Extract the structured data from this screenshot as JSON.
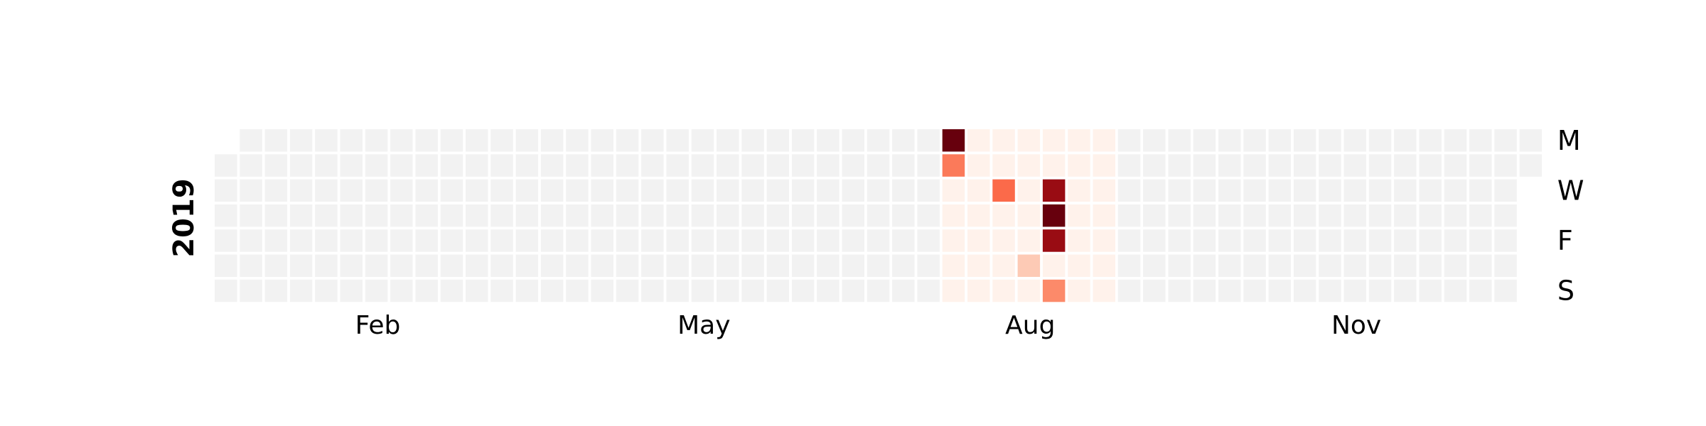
{
  "chart_data": {
    "type": "heatmap",
    "subtype": "calendar",
    "year": "2019",
    "first_day": "2019-01-01",
    "last_day": "2019-12-31",
    "week_start": "Monday",
    "month_labels": [
      "Feb",
      "May",
      "Aug",
      "Nov"
    ],
    "day_labels": [
      "M",
      "W",
      "F",
      "S"
    ],
    "colormap": "Reds",
    "empty_color": "#f2f2f2",
    "data_range": {
      "first": "2019-07-22",
      "last": "2019-09-08"
    },
    "values": {
      "2019-07-22": 10.0,
      "2019-07-23": 4.5,
      "2019-08-07": 5.0,
      "2019-08-17": 2.0,
      "2019-08-21": 9.0,
      "2019-08-22": 10.0,
      "2019-08-23": 9.0,
      "2019-08-25": 4.0
    },
    "default_value": 0.2,
    "vmin": 0,
    "vmax": 10
  }
}
